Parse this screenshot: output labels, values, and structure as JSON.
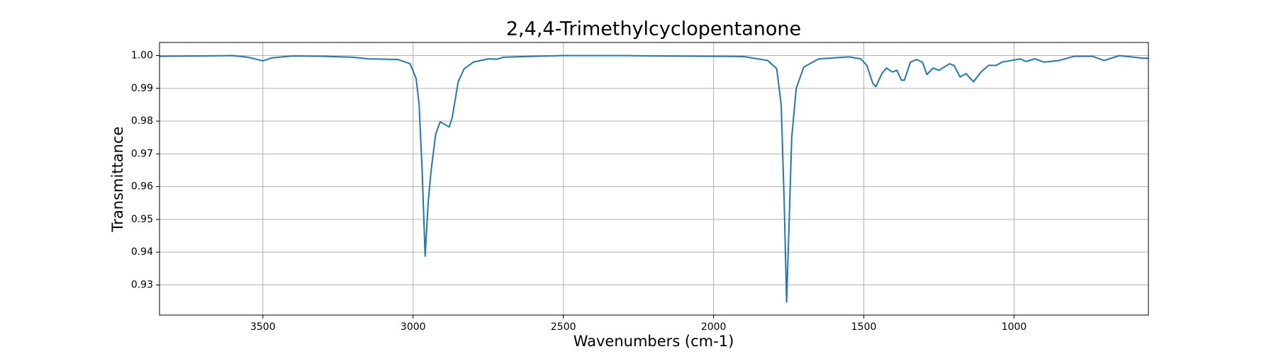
{
  "chart_data": {
    "type": "line",
    "title": "2,4,4-Trimethylcyclopentanone",
    "xlabel": "Wavenumbers (cm-1)",
    "ylabel": "Transmittance",
    "xlim": [
      3844,
      553
    ],
    "ylim": [
      0.9208,
      1.004
    ],
    "xticks": [
      3500,
      3000,
      2500,
      2000,
      1500,
      1000
    ],
    "yticks": [
      0.93,
      0.94,
      0.95,
      0.96,
      0.97,
      0.98,
      0.99,
      {
        "value": 1,
        "label": "1.00"
      }
    ],
    "grid": true,
    "series": [
      {
        "color": "#1f77b4",
        "x": [
          3844,
          3700,
          3600,
          3550,
          3500,
          3470,
          3400,
          3300,
          3200,
          3150,
          3050,
          3010,
          2990,
          2980,
          2970,
          2960,
          2950,
          2940,
          2925,
          2910,
          2895,
          2880,
          2870,
          2850,
          2830,
          2800,
          2750,
          2720,
          2700,
          2600,
          2500,
          2300,
          2200,
          2000,
          1900,
          1820,
          1790,
          1775,
          1765,
          1757,
          1750,
          1740,
          1725,
          1700,
          1650,
          1550,
          1510,
          1490,
          1470,
          1460,
          1440,
          1425,
          1405,
          1390,
          1375,
          1365,
          1345,
          1325,
          1305,
          1290,
          1270,
          1250,
          1215,
          1200,
          1180,
          1160,
          1135,
          1110,
          1085,
          1060,
          1040,
          1010,
          980,
          960,
          930,
          900,
          850,
          800,
          740,
          700,
          650,
          600,
          570,
          553
        ],
        "values": [
          0.9998,
          0.9999,
          1.0,
          0.9995,
          0.9984,
          0.9993,
          0.9999,
          0.9998,
          0.9995,
          0.999,
          0.9988,
          0.9975,
          0.993,
          0.985,
          0.965,
          0.9388,
          0.955,
          0.965,
          0.976,
          0.9798,
          0.979,
          0.9782,
          0.981,
          0.992,
          0.996,
          0.998,
          0.999,
          0.9989,
          0.9995,
          0.9998,
          1.0,
          1.0,
          0.9999,
          0.9998,
          0.9997,
          0.9985,
          0.996,
          0.985,
          0.955,
          0.9248,
          0.945,
          0.975,
          0.99,
          0.9965,
          0.999,
          0.9996,
          0.999,
          0.997,
          0.9915,
          0.9905,
          0.9945,
          0.9962,
          0.995,
          0.9955,
          0.9925,
          0.9925,
          0.998,
          0.9988,
          0.998,
          0.9942,
          0.9962,
          0.9955,
          0.9975,
          0.997,
          0.9935,
          0.9945,
          0.992,
          0.995,
          0.997,
          0.997,
          0.998,
          0.9985,
          0.999,
          0.9982,
          0.999,
          0.998,
          0.9985,
          0.9998,
          0.9998,
          0.9985,
          1.0,
          0.9995,
          0.9992,
          0.9992
        ]
      }
    ]
  }
}
